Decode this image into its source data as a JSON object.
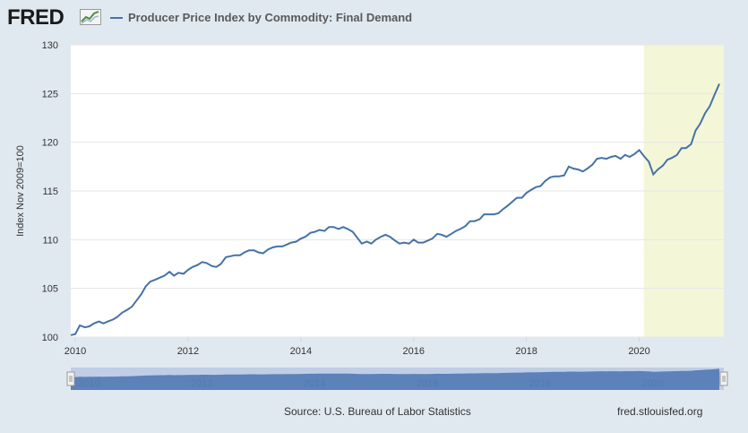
{
  "logo": {
    "text": "FRED"
  },
  "legend": {
    "label": "Producer Price Index by Commodity: Final Demand"
  },
  "colors": {
    "series": "#4572a7",
    "recession": "#f4f6d8",
    "plot_bg": "#ffffff",
    "page_bg": "#e1e9f0"
  },
  "footer": {
    "source": "Source: U.S. Bureau of Labor Statistics",
    "url": "fred.stlouisfed.org"
  },
  "chart_data": {
    "type": "line",
    "title": "Producer Price Index by Commodity: Final Demand",
    "ylabel": "Index Nov 2009=100",
    "xlabel": "",
    "ylim": [
      100,
      130
    ],
    "xlim": [
      2009.92,
      2021.5
    ],
    "yticks": [
      100,
      105,
      110,
      115,
      120,
      125,
      130
    ],
    "xticks": [
      2010,
      2012,
      2014,
      2016,
      2018,
      2020
    ],
    "navigator_ticks": [
      2010,
      2012,
      2014,
      2016,
      2018,
      2020
    ],
    "shaded_periods": [
      [
        2020.08,
        2021.5
      ]
    ],
    "series": [
      {
        "name": "Producer Price Index by Commodity: Final Demand",
        "x": [
          2009.92,
          2010.0,
          2010.08,
          2010.17,
          2010.25,
          2010.33,
          2010.42,
          2010.5,
          2010.58,
          2010.67,
          2010.75,
          2010.83,
          2010.92,
          2011.0,
          2011.08,
          2011.17,
          2011.25,
          2011.33,
          2011.42,
          2011.5,
          2011.58,
          2011.67,
          2011.75,
          2011.83,
          2011.92,
          2012.0,
          2012.08,
          2012.17,
          2012.25,
          2012.33,
          2012.42,
          2012.5,
          2012.58,
          2012.67,
          2012.75,
          2012.83,
          2012.92,
          2013.0,
          2013.08,
          2013.17,
          2013.25,
          2013.33,
          2013.42,
          2013.5,
          2013.58,
          2013.67,
          2013.75,
          2013.83,
          2013.92,
          2014.0,
          2014.08,
          2014.17,
          2014.25,
          2014.33,
          2014.42,
          2014.5,
          2014.58,
          2014.67,
          2014.75,
          2014.83,
          2014.92,
          2015.0,
          2015.08,
          2015.17,
          2015.25,
          2015.33,
          2015.42,
          2015.5,
          2015.58,
          2015.67,
          2015.75,
          2015.83,
          2015.92,
          2016.0,
          2016.08,
          2016.17,
          2016.25,
          2016.33,
          2016.42,
          2016.5,
          2016.58,
          2016.67,
          2016.75,
          2016.83,
          2016.92,
          2017.0,
          2017.08,
          2017.17,
          2017.25,
          2017.33,
          2017.42,
          2017.5,
          2017.58,
          2017.67,
          2017.75,
          2017.83,
          2017.92,
          2018.0,
          2018.08,
          2018.17,
          2018.25,
          2018.33,
          2018.42,
          2018.5,
          2018.58,
          2018.67,
          2018.75,
          2018.83,
          2018.92,
          2019.0,
          2019.08,
          2019.17,
          2019.25,
          2019.33,
          2019.42,
          2019.5,
          2019.58,
          2019.67,
          2019.75,
          2019.83,
          2019.92,
          2020.0,
          2020.08,
          2020.17,
          2020.25,
          2020.33,
          2020.42,
          2020.5,
          2020.58,
          2020.67,
          2020.75,
          2020.83,
          2020.92,
          2021.0,
          2021.08,
          2021.17,
          2021.25,
          2021.33,
          2021.42
        ],
        "values": [
          100.2,
          100.3,
          101.2,
          101.0,
          101.1,
          101.4,
          101.6,
          101.4,
          101.6,
          101.8,
          102.1,
          102.5,
          102.8,
          103.1,
          103.7,
          104.4,
          105.2,
          105.7,
          105.9,
          106.1,
          106.3,
          106.7,
          106.3,
          106.6,
          106.5,
          106.9,
          107.2,
          107.4,
          107.7,
          107.6,
          107.3,
          107.2,
          107.5,
          108.2,
          108.3,
          108.4,
          108.4,
          108.7,
          108.9,
          108.9,
          108.7,
          108.6,
          109.0,
          109.2,
          109.3,
          109.3,
          109.5,
          109.7,
          109.8,
          110.1,
          110.3,
          110.7,
          110.8,
          111.0,
          110.9,
          111.3,
          111.3,
          111.1,
          111.3,
          111.1,
          110.8,
          110.2,
          109.6,
          109.8,
          109.6,
          110.0,
          110.3,
          110.5,
          110.3,
          109.9,
          109.6,
          109.7,
          109.6,
          110.0,
          109.7,
          109.7,
          109.9,
          110.1,
          110.6,
          110.5,
          110.3,
          110.6,
          110.9,
          111.1,
          111.4,
          111.9,
          111.9,
          112.1,
          112.6,
          112.6,
          112.6,
          112.7,
          113.1,
          113.5,
          113.9,
          114.3,
          114.3,
          114.8,
          115.1,
          115.4,
          115.5,
          116.0,
          116.4,
          116.5,
          116.5,
          116.6,
          117.5,
          117.3,
          117.2,
          117.0,
          117.3,
          117.7,
          118.3,
          118.4,
          118.3,
          118.5,
          118.6,
          118.3,
          118.7,
          118.5,
          118.8,
          119.2,
          118.6,
          118.0,
          116.7,
          117.2,
          117.6,
          118.2,
          118.4,
          118.7,
          119.4,
          119.4,
          119.8,
          121.2,
          121.9,
          123.0,
          123.7,
          124.8,
          126.0
        ]
      }
    ]
  }
}
